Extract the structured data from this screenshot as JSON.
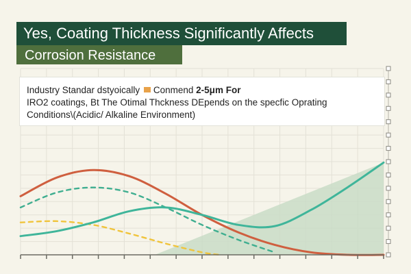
{
  "header": {
    "title": "Yes, Coating Thickness Significantly Affects",
    "subtitle": "Corrosion Resistance"
  },
  "note": {
    "line1_a": "Industry Standar dstyoically",
    "icon": "orange-square-icon",
    "line1_b": "Conmend",
    "line1_c": "2-5μm For",
    "line2": "IRO2 coatings, Bt The Otimal Thckness DEpends on the specfic Oprating",
    "line3": "Conditions\\(Acidic/ Alkaline Environment)"
  },
  "colors": {
    "background": "#f6f4ea",
    "title_bg": "#1f4f39",
    "subtitle_bg": "#4f6f3d",
    "red": "#cf5f3f",
    "teal": "#3fb59a",
    "teal_dashed": "#3fae90",
    "yellow_dashed": "#f0c43c",
    "shaded_region": "#c9dcc7"
  },
  "chart_data": {
    "type": "line",
    "title": "",
    "xlabel": "",
    "ylabel": "",
    "xlim": [
      0,
      10
    ],
    "ylim": [
      0,
      10
    ],
    "grid": true,
    "x_ticks": 14,
    "y_ticks": 14,
    "shaded_region": [
      [
        3.7,
        0
      ],
      [
        10,
        7.4
      ],
      [
        10,
        0
      ]
    ],
    "series": [
      {
        "style": "solid",
        "color": "#cf5f3f",
        "points": [
          [
            0,
            4.7
          ],
          [
            1,
            6.2
          ],
          [
            2,
            6.8
          ],
          [
            3,
            6.3
          ],
          [
            4,
            4.9
          ],
          [
            5,
            3.2
          ],
          [
            6,
            1.8
          ],
          [
            7,
            0.8
          ],
          [
            8,
            0.2
          ],
          [
            9,
            0
          ],
          [
            10,
            0
          ]
        ]
      },
      {
        "style": "dashed",
        "color": "#3fae90",
        "points": [
          [
            0,
            3.8
          ],
          [
            1,
            5.0
          ],
          [
            2,
            5.4
          ],
          [
            3,
            5.0
          ],
          [
            4,
            3.8
          ],
          [
            5,
            2.4
          ],
          [
            6,
            1.2
          ],
          [
            7,
            0.2
          ]
        ]
      },
      {
        "style": "dashed",
        "color": "#f0c43c",
        "points": [
          [
            0,
            2.6
          ],
          [
            1,
            2.7
          ],
          [
            2,
            2.4
          ],
          [
            3,
            1.7
          ],
          [
            4,
            0.9
          ],
          [
            5,
            0.2
          ],
          [
            5.5,
            0
          ]
        ]
      },
      {
        "style": "solid",
        "color": "#3fb59a",
        "points": [
          [
            0,
            1.5
          ],
          [
            1,
            1.9
          ],
          [
            2,
            2.6
          ],
          [
            3,
            3.5
          ],
          [
            4,
            3.8
          ],
          [
            5,
            3.2
          ],
          [
            6,
            2.4
          ],
          [
            7,
            2.3
          ],
          [
            8,
            3.6
          ],
          [
            9,
            5.4
          ],
          [
            10,
            7.4
          ]
        ]
      }
    ]
  }
}
